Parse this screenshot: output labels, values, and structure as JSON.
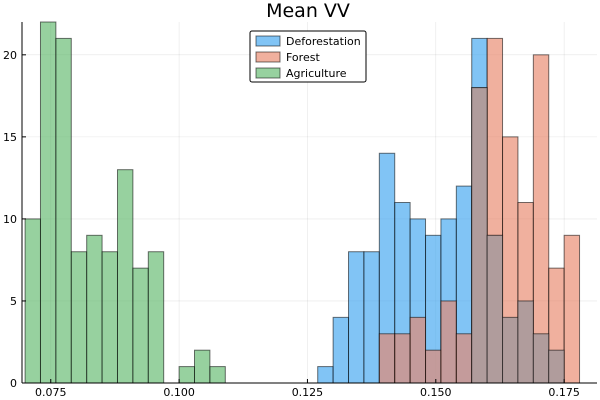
{
  "chart_data": {
    "type": "bar",
    "subtype": "overlapping-histogram",
    "title": "Mean VV",
    "xlabel": "",
    "ylabel": "",
    "xlim": [
      0.0694,
      0.1814
    ],
    "ylim": [
      0,
      22
    ],
    "bin_width": 0.003,
    "grid": true,
    "legend_position": "top-center",
    "x_ticks": [
      {
        "value": 0.075,
        "label": "0.075"
      },
      {
        "value": 0.1,
        "label": "0.100"
      },
      {
        "value": 0.125,
        "label": "0.125"
      },
      {
        "value": 0.15,
        "label": "0.150"
      },
      {
        "value": 0.175,
        "label": "0.175"
      }
    ],
    "y_ticks": [
      {
        "value": 0,
        "label": "0"
      },
      {
        "value": 5,
        "label": "5"
      },
      {
        "value": 10,
        "label": "10"
      },
      {
        "value": 15,
        "label": "15"
      },
      {
        "value": 20,
        "label": "20"
      }
    ],
    "series": [
      {
        "name": "Deforestation",
        "color": "#3da5f0",
        "bins": [
          {
            "x0": 0.127,
            "x1": 0.13,
            "count": 1
          },
          {
            "x0": 0.13,
            "x1": 0.133,
            "count": 4
          },
          {
            "x0": 0.133,
            "x1": 0.136,
            "count": 8
          },
          {
            "x0": 0.136,
            "x1": 0.139,
            "count": 8
          },
          {
            "x0": 0.139,
            "x1": 0.142,
            "count": 14
          },
          {
            "x0": 0.142,
            "x1": 0.145,
            "count": 11
          },
          {
            "x0": 0.145,
            "x1": 0.148,
            "count": 10
          },
          {
            "x0": 0.148,
            "x1": 0.151,
            "count": 9
          },
          {
            "x0": 0.151,
            "x1": 0.154,
            "count": 10
          },
          {
            "x0": 0.154,
            "x1": 0.157,
            "count": 12
          },
          {
            "x0": 0.157,
            "x1": 0.16,
            "count": 21
          },
          {
            "x0": 0.16,
            "x1": 0.163,
            "count": 9
          }
        ]
      },
      {
        "name": "Forest",
        "color": "#e8866a",
        "bins": [
          {
            "x0": 0.139,
            "x1": 0.142,
            "count": 3
          },
          {
            "x0": 0.142,
            "x1": 0.145,
            "count": 3
          },
          {
            "x0": 0.145,
            "x1": 0.148,
            "count": 4
          },
          {
            "x0": 0.148,
            "x1": 0.151,
            "count": 2
          },
          {
            "x0": 0.151,
            "x1": 0.154,
            "count": 5
          },
          {
            "x0": 0.154,
            "x1": 0.157,
            "count": 3
          },
          {
            "x0": 0.157,
            "x1": 0.16,
            "count": 18
          },
          {
            "x0": 0.16,
            "x1": 0.163,
            "count": 21
          },
          {
            "x0": 0.163,
            "x1": 0.166,
            "count": 15
          },
          {
            "x0": 0.166,
            "x1": 0.169,
            "count": 11
          },
          {
            "x0": 0.169,
            "x1": 0.172,
            "count": 20
          },
          {
            "x0": 0.172,
            "x1": 0.175,
            "count": 7
          },
          {
            "x0": 0.175,
            "x1": 0.178,
            "count": 9
          }
        ]
      },
      {
        "name": "Agriculture",
        "color": "#5fb96b",
        "bins": [
          {
            "x0": 0.07,
            "x1": 0.073,
            "count": 10
          },
          {
            "x0": 0.073,
            "x1": 0.076,
            "count": 22
          },
          {
            "x0": 0.076,
            "x1": 0.079,
            "count": 21
          },
          {
            "x0": 0.079,
            "x1": 0.082,
            "count": 8
          },
          {
            "x0": 0.082,
            "x1": 0.085,
            "count": 9
          },
          {
            "x0": 0.085,
            "x1": 0.088,
            "count": 8
          },
          {
            "x0": 0.088,
            "x1": 0.091,
            "count": 13
          },
          {
            "x0": 0.091,
            "x1": 0.094,
            "count": 7
          },
          {
            "x0": 0.094,
            "x1": 0.097,
            "count": 8
          },
          {
            "x0": 0.1,
            "x1": 0.103,
            "count": 1
          },
          {
            "x0": 0.103,
            "x1": 0.106,
            "count": 2
          },
          {
            "x0": 0.106,
            "x1": 0.109,
            "count": 1
          }
        ]
      },
      {
        "name": "",
        "is_overlap_rendering": true,
        "bins": [
          {
            "x0": 0.157,
            "x1": 0.16,
            "count": 18
          },
          {
            "x0": 0.16,
            "x1": 0.163,
            "count": 9
          },
          {
            "x0": 0.163,
            "x1": 0.166,
            "count": 4
          },
          {
            "x0": 0.166,
            "x1": 0.169,
            "count": 5
          },
          {
            "x0": 0.169,
            "x1": 0.172,
            "count": 3
          },
          {
            "x0": 0.172,
            "x1": 0.175,
            "count": 2
          }
        ]
      }
    ]
  }
}
